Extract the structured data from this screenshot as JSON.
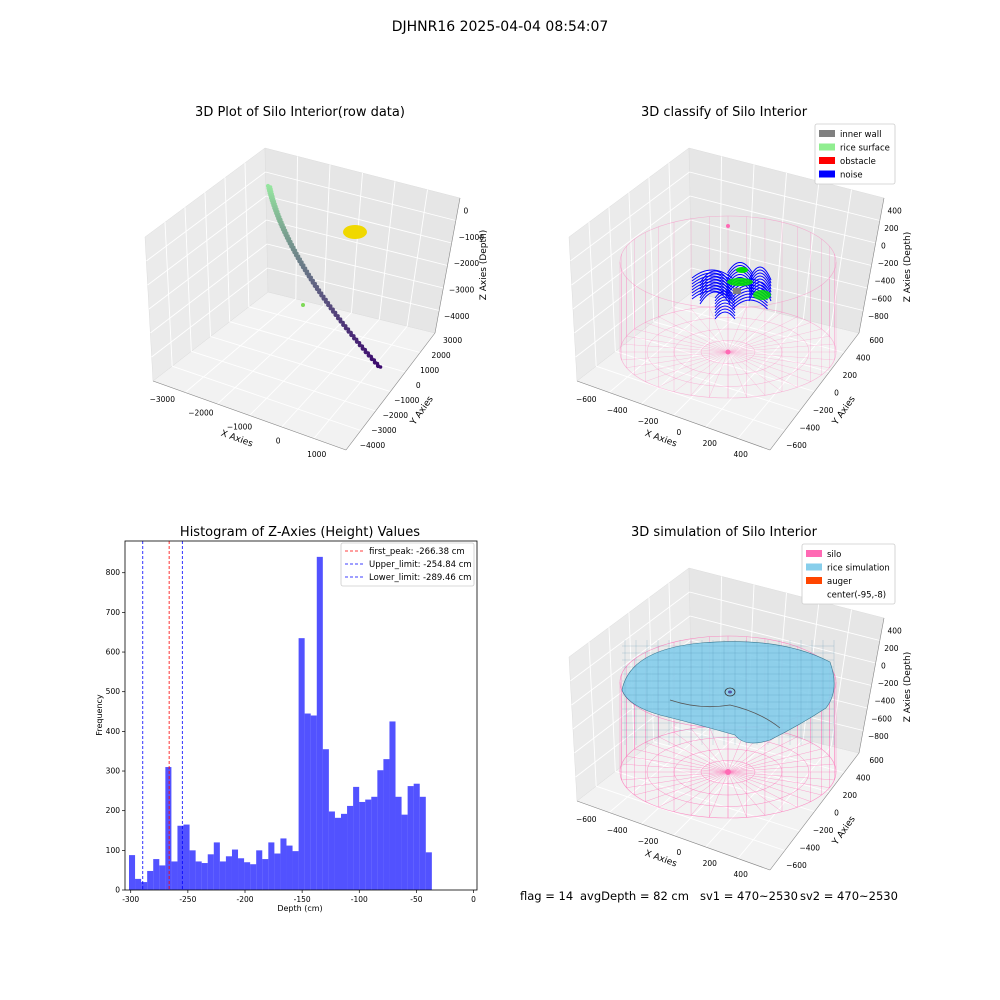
{
  "suptitle": "DJHNR16 2025-04-04 08:54:07",
  "footer": {
    "flag": "flag = 14",
    "avg_depth": "avgDepth = 82 cm",
    "sv1": "sv1 = 470~2530",
    "sv2": "sv2 = 470~2530"
  },
  "panels": {
    "raw": {
      "title": "3D Plot of Silo Interior(row data)",
      "xlabel": "X Axies",
      "ylabel": "Y Axies",
      "zlabel": "Z Axies (Depth)",
      "xticks": [
        "−3000",
        "−2000",
        "−1000",
        "0",
        "1000"
      ],
      "yticks": [
        "−4000",
        "−3000",
        "−2000",
        "−1000",
        "0",
        "1000",
        "2000",
        "3000"
      ],
      "zticks": [
        "−4000",
        "−3000",
        "−2000",
        "−1000",
        "0"
      ]
    },
    "classify": {
      "title": "3D classify of Silo Interior",
      "xlabel": "X Axies",
      "ylabel": "Y Axies",
      "zlabel": "Z Axies (Depth)",
      "xticks": [
        "−600",
        "−400",
        "−200",
        "0",
        "200",
        "400"
      ],
      "yticks": [
        "−600",
        "−400",
        "−200",
        "0",
        "200",
        "400",
        "600"
      ],
      "zticks": [
        "−800",
        "−600",
        "−400",
        "−200",
        "0",
        "200",
        "400"
      ],
      "legend": [
        {
          "label": "inner wall",
          "color": "#808080"
        },
        {
          "label": "rice surface",
          "color": "#90ee90"
        },
        {
          "label": "obstacle",
          "color": "#ff0000"
        },
        {
          "label": "noise",
          "color": "#0000ff"
        }
      ]
    },
    "simulation": {
      "title": "3D simulation of Silo Interior",
      "xlabel": "X Axies",
      "ylabel": "Y Axies",
      "zlabel": "Z Axies (Depth)",
      "xticks": [
        "−600",
        "−400",
        "−200",
        "0",
        "200",
        "400"
      ],
      "yticks": [
        "−600",
        "−400",
        "−200",
        "0",
        "200",
        "400",
        "600"
      ],
      "zticks": [
        "−800",
        "−600",
        "−400",
        "−200",
        "0",
        "200",
        "400"
      ],
      "legend": [
        {
          "label": "silo",
          "color": "#ff69b4"
        },
        {
          "label": "rice simulation",
          "color": "#87ceeb"
        },
        {
          "label": "auger",
          "color": "#ff4500"
        },
        {
          "label": "center(-95,-8)",
          "color": "none"
        }
      ]
    }
  },
  "chart_data": {
    "type": "bar",
    "title": "Histogram of Z-Axies (Height) Values",
    "xlabel": "Depth (cm)",
    "ylabel": "Frequency",
    "xlim": [
      -305,
      3
    ],
    "ylim": [
      0,
      880
    ],
    "bin_width": 5.3,
    "bin_start": -301.5,
    "values": [
      88,
      28,
      20,
      48,
      78,
      62,
      310,
      72,
      162,
      165,
      100,
      72,
      68,
      90,
      120,
      72,
      85,
      102,
      80,
      70,
      65,
      100,
      78,
      120,
      92,
      130,
      112,
      98,
      635,
      445,
      440,
      840,
      355,
      198,
      182,
      192,
      212,
      260,
      222,
      228,
      235,
      302,
      330,
      425,
      235,
      190,
      262,
      268,
      235,
      95
    ],
    "bar_color": "#0000ff",
    "xticks": [
      -300,
      -250,
      -200,
      -150,
      -100,
      -50,
      0
    ],
    "yticks": [
      0,
      100,
      200,
      300,
      400,
      500,
      600,
      700,
      800
    ],
    "vlines": [
      {
        "label": "first_peak: -266.38 cm",
        "x": -266.38,
        "color": "#ff0000"
      },
      {
        "label": "Upper_limit: -254.84 cm",
        "x": -254.84,
        "color": "#0000ff"
      },
      {
        "label": "Lower_limit: -289.46 cm",
        "x": -289.46,
        "color": "#0000ff"
      }
    ],
    "legend_position": "top-right",
    "grid": false
  }
}
